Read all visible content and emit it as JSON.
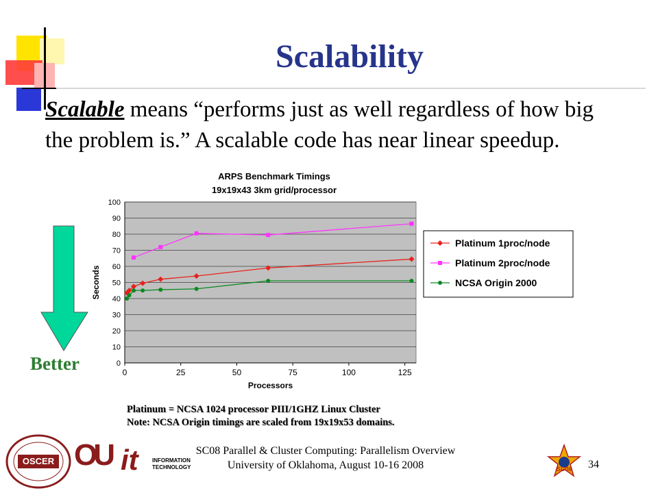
{
  "slide": {
    "title": "Scalability",
    "body_keyword": "Scalable",
    "body_text": " means “performs just as well regardless of how big the problem is.” A scalable code has near linear speedup.",
    "better_label": "Better",
    "note_line1": "Platinum = NCSA 1024 processor PIII/1GHZ Linux Cluster",
    "note_line2": "Note: NCSA Origin timings are scaled from 19x19x53 domains.",
    "footer_line1": "SC08 Parallel & Cluster Computing: Parallelism Overview",
    "footer_line2": "University of Oklahoma, August 10-16 2008",
    "slide_number": "34",
    "colors": {
      "title": "#26348b",
      "arrow": "#00d79b",
      "better": "#2e7d32"
    }
  },
  "logos": {
    "oscer": "OSCER",
    "ou": "OU",
    "it": "it",
    "it_line1": "INFORMATION",
    "it_line2": "TECHNOLOGY",
    "sc08": "SC08"
  },
  "chart_data": {
    "type": "line",
    "title": "ARPS Benchmark Timings",
    "subtitle": "19x19x43 3km grid/processor",
    "xlabel": "Processors",
    "ylabel": "Seconds",
    "xlim": [
      0,
      130
    ],
    "ylim": [
      0,
      100
    ],
    "x_ticks": [
      0,
      25,
      50,
      75,
      100,
      125
    ],
    "y_ticks": [
      0,
      10,
      20,
      30,
      40,
      50,
      60,
      70,
      80,
      90,
      100
    ],
    "grid": true,
    "plot_background": "#c0c0c0",
    "legend_position": "right",
    "series": [
      {
        "name": "Platinum 1proc/node",
        "color": "#e8211a",
        "marker": "diamond",
        "x": [
          1,
          2,
          4,
          8,
          16,
          32,
          64,
          128
        ],
        "y": [
          43.5,
          45,
          47.5,
          49.5,
          52,
          54,
          59,
          64.5
        ]
      },
      {
        "name": "Platinum 2proc/node",
        "color": "#ff33ff",
        "marker": "square",
        "x": [
          4,
          16,
          32,
          64,
          128
        ],
        "y": [
          65.5,
          72,
          80.5,
          79.5,
          86.5
        ]
      },
      {
        "name": "NCSA Origin 2000",
        "color": "#0a8a22",
        "marker": "circle",
        "x": [
          1,
          2,
          4,
          8,
          16,
          32,
          64,
          128
        ],
        "y": [
          40,
          42,
          45,
          45,
          45.5,
          46,
          51,
          51
        ]
      }
    ]
  }
}
